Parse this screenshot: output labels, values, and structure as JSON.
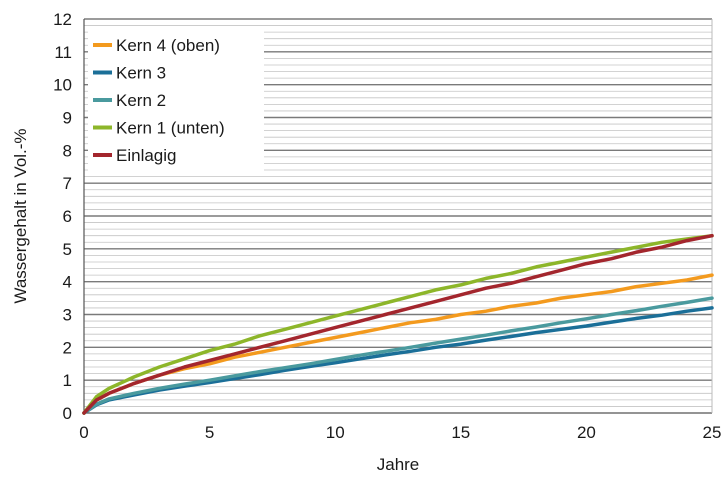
{
  "chart_data": {
    "type": "line",
    "title": "",
    "xlabel": "Jahre",
    "ylabel": "Wassergehalt in Vol.-%",
    "xlim": [
      0,
      25
    ],
    "ylim": [
      0,
      12
    ],
    "x_ticks": [
      "0",
      "5",
      "10",
      "15",
      "20",
      "25"
    ],
    "y_ticks": [
      "0",
      "1",
      "2",
      "3",
      "4",
      "5",
      "6",
      "7",
      "8",
      "9",
      "10",
      "11",
      "12"
    ],
    "grid": "horizontal, major and minor",
    "legend_position": "top-left",
    "x": [
      0,
      0.5,
      1,
      2,
      3,
      4,
      5,
      6,
      7,
      8,
      9,
      10,
      11,
      12,
      13,
      14,
      15,
      16,
      17,
      18,
      19,
      20,
      21,
      22,
      23,
      24,
      25
    ],
    "series": [
      {
        "name": "Kern 4 (oben)",
        "color": "#f39a1e",
        "values": [
          0.0,
          0.4,
          0.6,
          0.9,
          1.15,
          1.35,
          1.5,
          1.7,
          1.85,
          2.0,
          2.15,
          2.3,
          2.45,
          2.6,
          2.75,
          2.85,
          3.0,
          3.1,
          3.25,
          3.35,
          3.5,
          3.6,
          3.7,
          3.85,
          3.95,
          4.05,
          4.2
        ]
      },
      {
        "name": "Kern 3",
        "color": "#1b6f98",
        "values": [
          0.0,
          0.25,
          0.4,
          0.55,
          0.7,
          0.82,
          0.93,
          1.05,
          1.17,
          1.3,
          1.42,
          1.53,
          1.65,
          1.77,
          1.88,
          2.0,
          2.1,
          2.22,
          2.33,
          2.45,
          2.55,
          2.65,
          2.77,
          2.88,
          2.98,
          3.1,
          3.2
        ]
      },
      {
        "name": "Kern 2",
        "color": "#4a9a9e",
        "values": [
          0.0,
          0.27,
          0.43,
          0.6,
          0.75,
          0.88,
          1.0,
          1.13,
          1.26,
          1.38,
          1.5,
          1.63,
          1.76,
          1.88,
          2.0,
          2.13,
          2.25,
          2.37,
          2.5,
          2.62,
          2.75,
          2.87,
          3.0,
          3.12,
          3.25,
          3.37,
          3.5
        ]
      },
      {
        "name": "Kern 1 (unten)",
        "color": "#8db62a",
        "values": [
          0.0,
          0.5,
          0.75,
          1.1,
          1.4,
          1.65,
          1.9,
          2.1,
          2.35,
          2.55,
          2.75,
          2.95,
          3.15,
          3.35,
          3.55,
          3.75,
          3.9,
          4.1,
          4.25,
          4.45,
          4.6,
          4.75,
          4.9,
          5.05,
          5.2,
          5.3,
          5.4
        ]
      },
      {
        "name": "Einlagig",
        "color": "#a3262d",
        "values": [
          0.0,
          0.4,
          0.6,
          0.9,
          1.15,
          1.4,
          1.6,
          1.8,
          2.0,
          2.2,
          2.4,
          2.6,
          2.8,
          3.0,
          3.2,
          3.4,
          3.6,
          3.8,
          3.95,
          4.15,
          4.35,
          4.55,
          4.7,
          4.9,
          5.05,
          5.25,
          5.4
        ]
      }
    ]
  }
}
